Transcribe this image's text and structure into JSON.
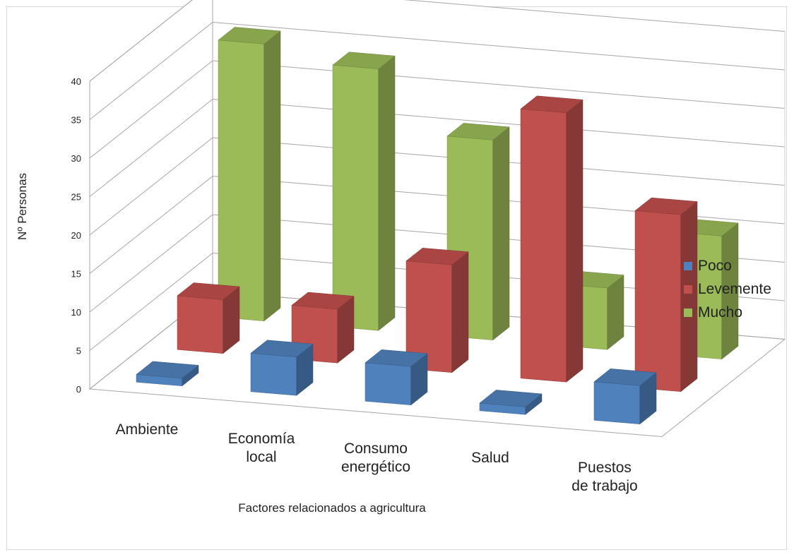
{
  "chart_data": {
    "type": "bar",
    "subtype": "3d-clustered-depth",
    "title": "",
    "xlabel": "Factores relacionados a agricultura",
    "ylabel": "Nº Personas",
    "ylim": [
      0,
      40
    ],
    "yticks": [
      "0",
      "5",
      "10",
      "15",
      "20",
      "25",
      "30",
      "35",
      "40"
    ],
    "categories": [
      {
        "lines": [
          "Ambiente"
        ]
      },
      {
        "lines": [
          "Economía",
          "local"
        ]
      },
      {
        "lines": [
          "Consumo",
          "energético"
        ]
      },
      {
        "lines": [
          "Salud"
        ]
      },
      {
        "lines": [
          "Puestos",
          "de trabajo"
        ]
      }
    ],
    "series": [
      {
        "name": "Poco",
        "color": "#4f81bd",
        "values": [
          1,
          5,
          5,
          1,
          5
        ]
      },
      {
        "name": "Levemente",
        "color": "#c0504d",
        "values": [
          7,
          7,
          14,
          35,
          23
        ]
      },
      {
        "name": "Mucho",
        "color": "#9bbb59",
        "values": [
          36,
          34,
          26,
          8,
          16
        ]
      }
    ],
    "grid": true,
    "legend": "right"
  }
}
